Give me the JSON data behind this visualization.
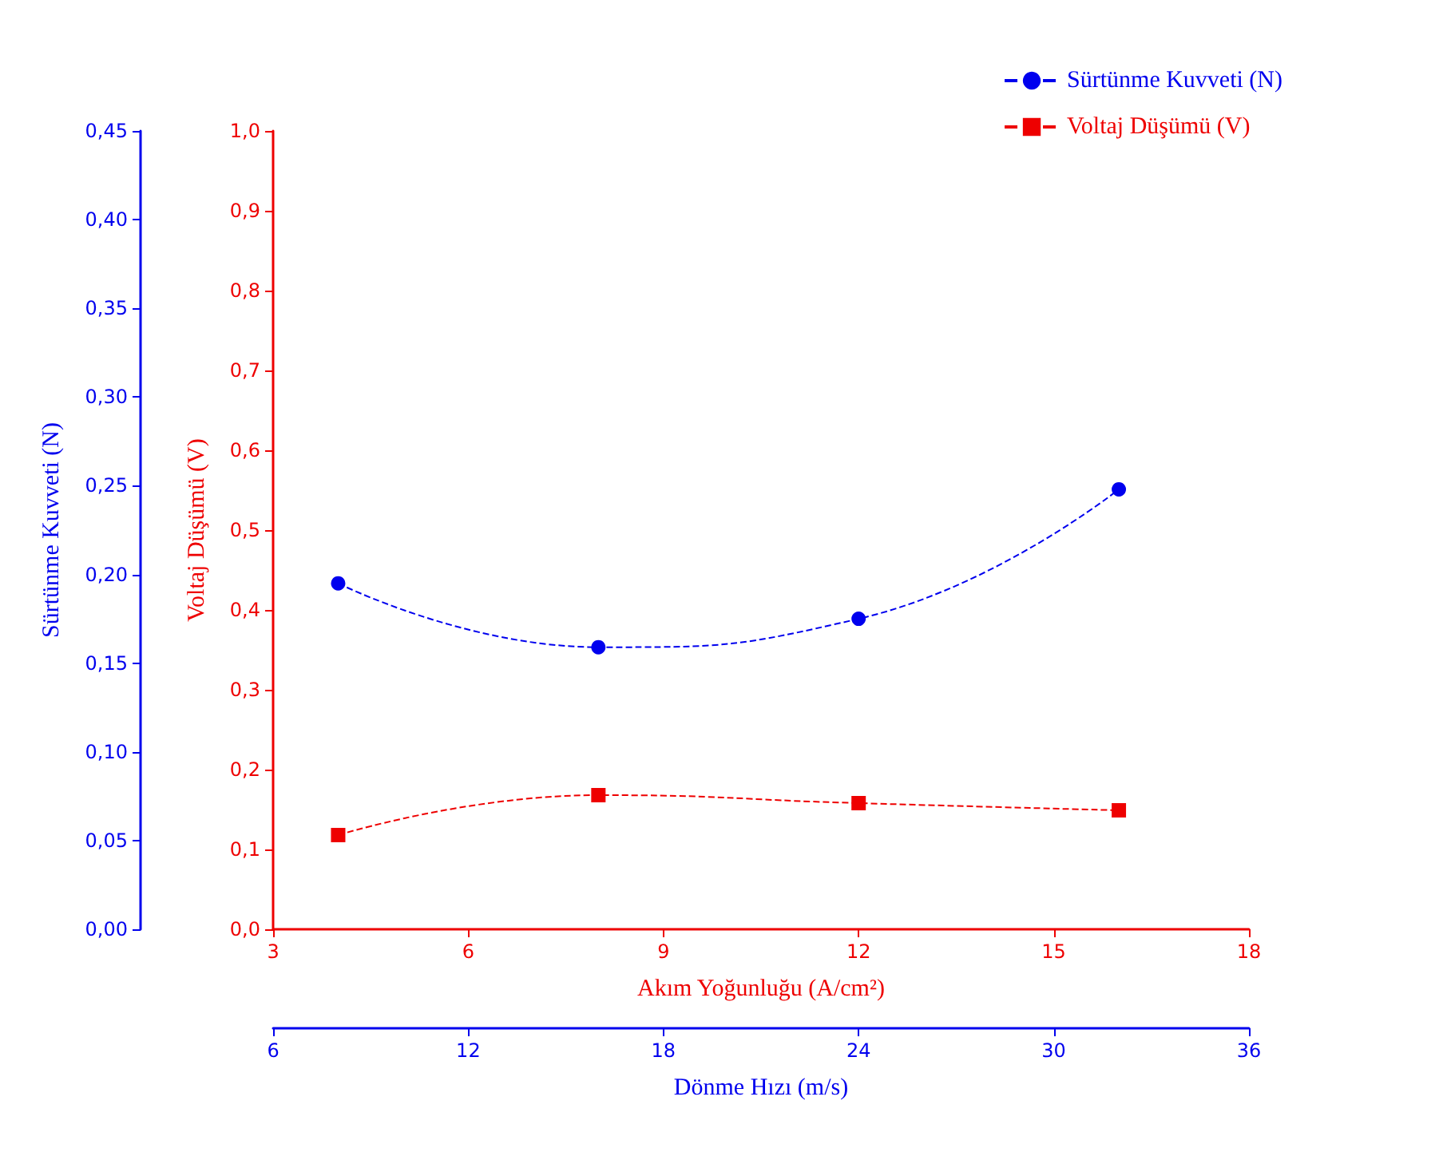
{
  "chart_data": {
    "type": "line",
    "xlabel": "Akım Yoğunluğu (A/cm²)",
    "ylabel": "Sürtünme Kuvveti (N)",
    "y2label": "Voltaj Düşümü (V)",
    "x2label": "Dönme Hızı (m/s)",
    "x": [
      4,
      8,
      12,
      16
    ],
    "series": [
      {
        "name": "Sürtünme Kuvveti (N)",
        "color": "#0000ee",
        "values": [
          0.195,
          0.159,
          0.175,
          0.248
        ],
        "marker": "circle",
        "axis": "y"
      },
      {
        "name": "Voltaj Düşümü (V)",
        "color": "#ee0000",
        "values": [
          0.118,
          0.168,
          0.158,
          0.149
        ],
        "marker": "square",
        "axis": "y2"
      }
    ],
    "xlim": [
      3,
      18
    ],
    "xticks": [
      3,
      6,
      9,
      12,
      15,
      18
    ],
    "x2lim": [
      6,
      36
    ],
    "x2ticks": [
      6,
      12,
      18,
      24,
      30,
      36
    ],
    "ylim": [
      0,
      0.45
    ],
    "yticks": [
      {
        "value": 0,
        "label": "0,00"
      },
      {
        "value": 0.05,
        "label": "0,05"
      },
      {
        "value": 0.1,
        "label": "0,10"
      },
      {
        "value": 0.15,
        "label": "0,15"
      },
      {
        "value": 0.2,
        "label": "0,20"
      },
      {
        "value": 0.25,
        "label": "0,25"
      },
      {
        "value": 0.3,
        "label": "0,30"
      },
      {
        "value": 0.35,
        "label": "0,35"
      },
      {
        "value": 0.4,
        "label": "0,40"
      },
      {
        "value": 0.45,
        "label": "0,45"
      }
    ],
    "y2lim": [
      0,
      1
    ],
    "y2ticks": [
      {
        "value": 0,
        "label": "0,0"
      },
      {
        "value": 0.1,
        "label": "0,1"
      },
      {
        "value": 0.2,
        "label": "0,2"
      },
      {
        "value": 0.3,
        "label": "0,3"
      },
      {
        "value": 0.4,
        "label": "0,4"
      },
      {
        "value": 0.5,
        "label": "0,5"
      },
      {
        "value": 0.6,
        "label": "0,6"
      },
      {
        "value": 0.7,
        "label": "0,7"
      },
      {
        "value": 0.8,
        "label": "0,8"
      },
      {
        "value": 0.9,
        "label": "0,9"
      },
      {
        "value": 1,
        "label": "1,0"
      }
    ],
    "grid": false,
    "legend": "top right",
    "line_style": "dashed"
  }
}
